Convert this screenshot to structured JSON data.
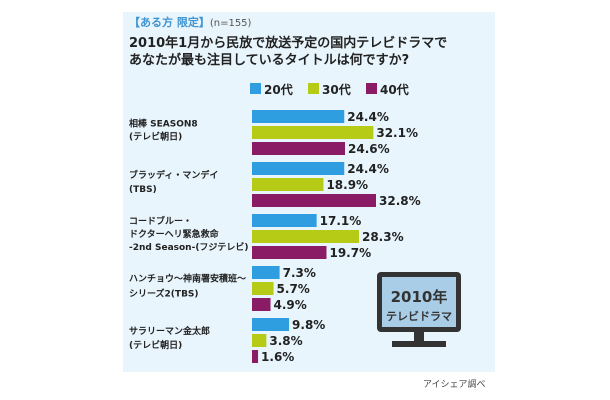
{
  "header": {
    "qualifier": "【ある方 限定】",
    "sample": "(n=155)",
    "question_line1": "2010年1月から民放で放送予定の国内テレビドラマで",
    "question_line2": "あなたが最も注目しているタイトルは何ですか?"
  },
  "colors": {
    "s20": "#2f9ee0",
    "s30": "#b5cb16",
    "s40": "#8a1c66",
    "panel": "#e8f5fc"
  },
  "tv": {
    "line1": "2010年",
    "line2": "テレビドラマ"
  },
  "source": "アイシェア調べ",
  "chart_data": {
    "type": "bar",
    "orientation": "horizontal",
    "categories": [
      [
        "相棒 SEASON8",
        "(テレビ朝日)"
      ],
      [
        "ブラッディ・マンデイ",
        "(TBS)"
      ],
      [
        "コードブルー・",
        "ドクターヘリ緊急救命",
        "-2nd Season-(フジテレビ)"
      ],
      [
        "ハンチョウ～神南署安積班～",
        "シリーズ2(TBS)"
      ],
      [
        "サラリーマン金太郎",
        "(テレビ朝日)"
      ]
    ],
    "series": [
      {
        "name": "20代",
        "values": [
          24.4,
          24.4,
          17.1,
          7.3,
          9.8
        ],
        "labels": [
          "24.4%",
          "24.4%",
          "17.1%",
          "7.3%",
          "9.8%"
        ]
      },
      {
        "name": "30代",
        "values": [
          32.1,
          18.9,
          28.3,
          5.7,
          3.8
        ],
        "labels": [
          "32.1%",
          "18.9%",
          "28.3%",
          "5.7%",
          "3.8%"
        ]
      },
      {
        "name": "40代",
        "values": [
          24.6,
          32.8,
          19.7,
          4.9,
          1.6
        ],
        "labels": [
          "24.6%",
          "32.8%",
          "19.7%",
          "4.9%",
          "1.6%"
        ]
      }
    ],
    "xlim": [
      0,
      32.8
    ],
    "grid": false,
    "legend": "top"
  }
}
